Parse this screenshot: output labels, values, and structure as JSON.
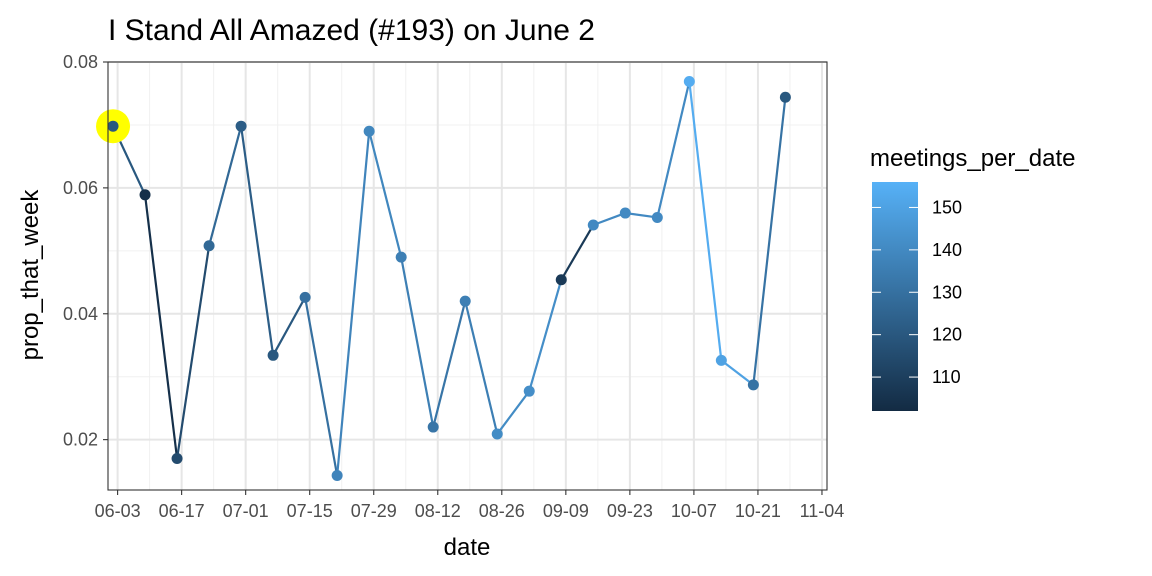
{
  "chart_data": {
    "type": "line",
    "title": "I Stand All Amazed (#193) on June 2",
    "xlabel": "date",
    "ylabel": "prop_that_week",
    "x_tick_labels": [
      "06-03",
      "06-17",
      "07-01",
      "07-15",
      "07-29",
      "08-12",
      "08-26",
      "09-09",
      "09-23",
      "10-07",
      "10-21",
      "11-04"
    ],
    "ylim": [
      0.012,
      0.08
    ],
    "y_ticks": [
      0.02,
      0.04,
      0.06,
      0.08
    ],
    "y_tick_labels": [
      "0.02",
      "0.04",
      "0.06",
      "0.08"
    ],
    "grid": true,
    "legend": {
      "title": "meetings_per_date",
      "placement": "right",
      "range": [
        102,
        156
      ],
      "ticks": [
        110,
        120,
        130,
        140,
        150
      ],
      "tick_labels": [
        "110",
        "120",
        "130",
        "140",
        "150"
      ],
      "color_low": "#132b43",
      "color_high": "#56b1f7"
    },
    "highlight": {
      "x": "2018-06-02",
      "color": "#ffff00"
    },
    "points": [
      {
        "x": "2018-06-02",
        "y": 0.0698,
        "meetings": 120
      },
      {
        "x": "2018-06-09",
        "y": 0.0589,
        "meetings": 104
      },
      {
        "x": "2018-06-16",
        "y": 0.017,
        "meetings": 115
      },
      {
        "x": "2018-06-23",
        "y": 0.0508,
        "meetings": 127
      },
      {
        "x": "2018-06-30",
        "y": 0.0698,
        "meetings": 122
      },
      {
        "x": "2018-07-07",
        "y": 0.0334,
        "meetings": 120
      },
      {
        "x": "2018-07-14",
        "y": 0.0426,
        "meetings": 130
      },
      {
        "x": "2018-07-21",
        "y": 0.0143,
        "meetings": 138
      },
      {
        "x": "2018-07-28",
        "y": 0.069,
        "meetings": 139
      },
      {
        "x": "2018-08-04",
        "y": 0.049,
        "meetings": 136
      },
      {
        "x": "2018-08-11",
        "y": 0.022,
        "meetings": 132
      },
      {
        "x": "2018-08-18",
        "y": 0.042,
        "meetings": 136
      },
      {
        "x": "2018-08-25",
        "y": 0.0209,
        "meetings": 141
      },
      {
        "x": "2018-09-01",
        "y": 0.0277,
        "meetings": 142
      },
      {
        "x": "2018-09-08",
        "y": 0.0454,
        "meetings": 108
      },
      {
        "x": "2018-09-15",
        "y": 0.0541,
        "meetings": 140
      },
      {
        "x": "2018-09-22",
        "y": 0.056,
        "meetings": 140
      },
      {
        "x": "2018-09-29",
        "y": 0.0553,
        "meetings": 140
      },
      {
        "x": "2018-10-06",
        "y": 0.0769,
        "meetings": 154
      },
      {
        "x": "2018-10-13",
        "y": 0.0326,
        "meetings": 150
      },
      {
        "x": "2018-10-20",
        "y": 0.0287,
        "meetings": 131
      },
      {
        "x": "2018-10-27",
        "y": 0.0744,
        "meetings": 120
      }
    ]
  }
}
